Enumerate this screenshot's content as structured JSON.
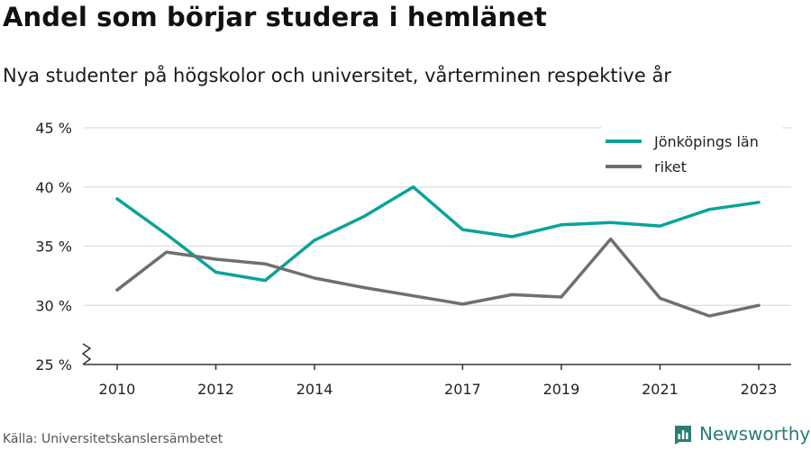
{
  "header": {
    "title": "Andel som börjar studera i hemlänet",
    "subtitle": "Nya studenter på högskolor och universitet, vårterminen respektive år"
  },
  "footer": {
    "source": "Källa: Universitetskanslersämbetet",
    "brand": "Newsworthy"
  },
  "colors": {
    "jonkoping": "#0aa39a",
    "riket": "#6f6e73",
    "grid": "#dddddd",
    "axis": "#333333",
    "brand": "#2a7d74"
  },
  "chart_data": {
    "type": "line",
    "title": "Andel som börjar studera i hemlänet",
    "subtitle": "Nya studenter på högskolor och universitet, vårterminen respektive år",
    "xlabel": "",
    "ylabel": "",
    "x": [
      2010,
      2011,
      2012,
      2013,
      2014,
      2015,
      2016,
      2017,
      2018,
      2019,
      2020,
      2021,
      2022,
      2023
    ],
    "x_tick_labels": [
      "2010",
      "2012",
      "2014",
      "2017",
      "2019",
      "2021",
      "2023"
    ],
    "y_tick_labels": [
      "25 %",
      "30 %",
      "35 %",
      "40 %",
      "45 %"
    ],
    "ylim": [
      25,
      45
    ],
    "xlim": [
      2010,
      2023
    ],
    "grid": true,
    "y_axis_break": true,
    "legend_position": "top-right",
    "series": [
      {
        "name": "Jönköpings län",
        "color": "#0aa39a",
        "values": [
          39.0,
          36.0,
          32.8,
          32.1,
          35.5,
          37.5,
          40.0,
          36.4,
          35.8,
          36.8,
          37.0,
          36.7,
          38.1,
          38.7
        ]
      },
      {
        "name": "riket",
        "color": "#6f6e73",
        "values": [
          31.3,
          34.5,
          33.9,
          33.5,
          32.3,
          31.5,
          30.8,
          30.1,
          30.9,
          30.7,
          35.6,
          30.6,
          29.1,
          30.0
        ]
      }
    ]
  }
}
